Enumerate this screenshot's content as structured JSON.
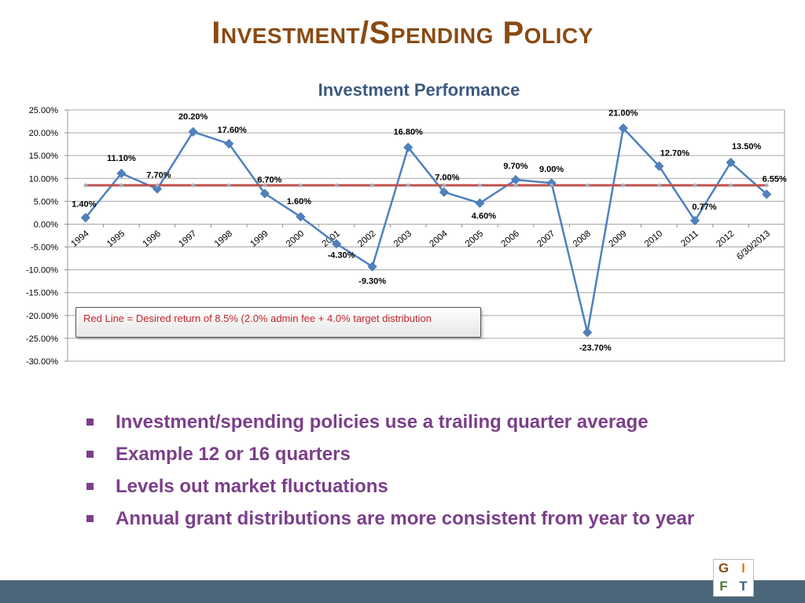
{
  "slide": {
    "title": "Investment/Spending Policy"
  },
  "chart_data": {
    "type": "line",
    "title": "Investment Performance",
    "categories": [
      "1994",
      "1995",
      "1996",
      "1997",
      "1998",
      "1999",
      "2000",
      "2001",
      "2002",
      "2003",
      "2004",
      "2005",
      "2006",
      "2007",
      "2008",
      "2009",
      "2010",
      "2011",
      "2012",
      "6/30/2013"
    ],
    "series": [
      {
        "values": [
          1.4,
          11.1,
          7.7,
          20.2,
          17.6,
          6.7,
          1.6,
          -4.3,
          -9.3,
          16.8,
          7.0,
          4.6,
          9.7,
          9.0,
          -23.7,
          21.0,
          12.7,
          0.77,
          13.5,
          6.55
        ],
        "data_labels": [
          "1.40%",
          "11.10%",
          "7.70%",
          "20.20%",
          "17.60%",
          "6.70%",
          "1.60%",
          "-4.30%",
          "-9.30%",
          "16.80%",
          "7.00%",
          "4.60%",
          "9.70%",
          "9.00%",
          "-23.70%",
          "21.00%",
          "12.70%",
          "0.77%",
          "13.50%",
          "6.55%"
        ],
        "color": "#4f81bd"
      },
      {
        "values": [
          8.5,
          8.5,
          8.5,
          8.5,
          8.5,
          8.5,
          8.5,
          8.5,
          8.5,
          8.5,
          8.5,
          8.5,
          8.5,
          8.5,
          8.5,
          8.5,
          8.5,
          8.5,
          8.5,
          8.5
        ],
        "color": "#c0504d"
      }
    ],
    "ylim": [
      -30,
      25
    ],
    "yticks": [
      "25.00%",
      "20.00%",
      "15.00%",
      "10.00%",
      "5.00%",
      "0.00%",
      "-5.00%",
      "-10.00%",
      "-15.00%",
      "-20.00%",
      "-25.00%",
      "-30.00%"
    ],
    "grid": true,
    "annotation": "Red Line = Desired return of 8.5% (2.0% admin fee + 4.0% target distribution"
  },
  "bullets": [
    "Investment/spending policies use a trailing quarter average",
    "Example 12 or 16 quarters",
    "Levels out market fluctuations",
    "Annual grant distributions are more consistent from year to year"
  ],
  "colors": {
    "title": "#8a4a12",
    "bullet_text": "#7b3f8a",
    "footer": "#4a6678"
  },
  "logo": {
    "icon": "gift-logo-icon",
    "letters": [
      "G",
      "I",
      "F",
      "T"
    ]
  }
}
